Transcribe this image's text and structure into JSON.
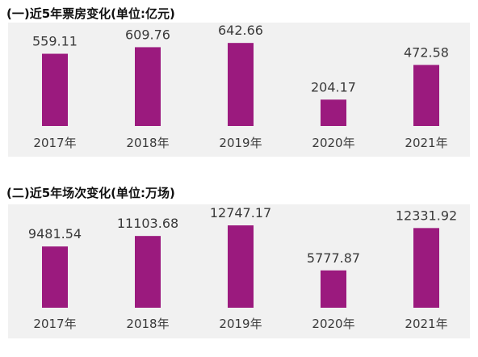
{
  "colors": {
    "bar": "#9b1a7e",
    "plot_background": "#f1f1f1",
    "text": "#3a3a3a"
  },
  "chart_data": [
    {
      "type": "bar",
      "title": "(一)近5年票房变化(单位:亿元)",
      "categories": [
        "2017年",
        "2018年",
        "2019年",
        "2020年",
        "2021年"
      ],
      "values": [
        559.11,
        609.76,
        642.66,
        204.17,
        472.58
      ],
      "value_labels": [
        "559.11",
        "609.76",
        "642.66",
        "204.17",
        "472.58"
      ],
      "ylim": [
        0,
        800
      ],
      "grid": false,
      "legend": "none"
    },
    {
      "type": "bar",
      "title": "(二)近5年场次变化(单位:万场)",
      "categories": [
        "2017年",
        "2018年",
        "2019年",
        "2020年",
        "2021年"
      ],
      "values": [
        9481.54,
        11103.68,
        12747.17,
        5777.87,
        12331.92
      ],
      "value_labels": [
        "9481.54",
        "11103.68",
        "12747.17",
        "5777.87",
        "12331.92"
      ],
      "ylim": [
        0,
        16000
      ],
      "grid": false,
      "legend": "none"
    }
  ]
}
